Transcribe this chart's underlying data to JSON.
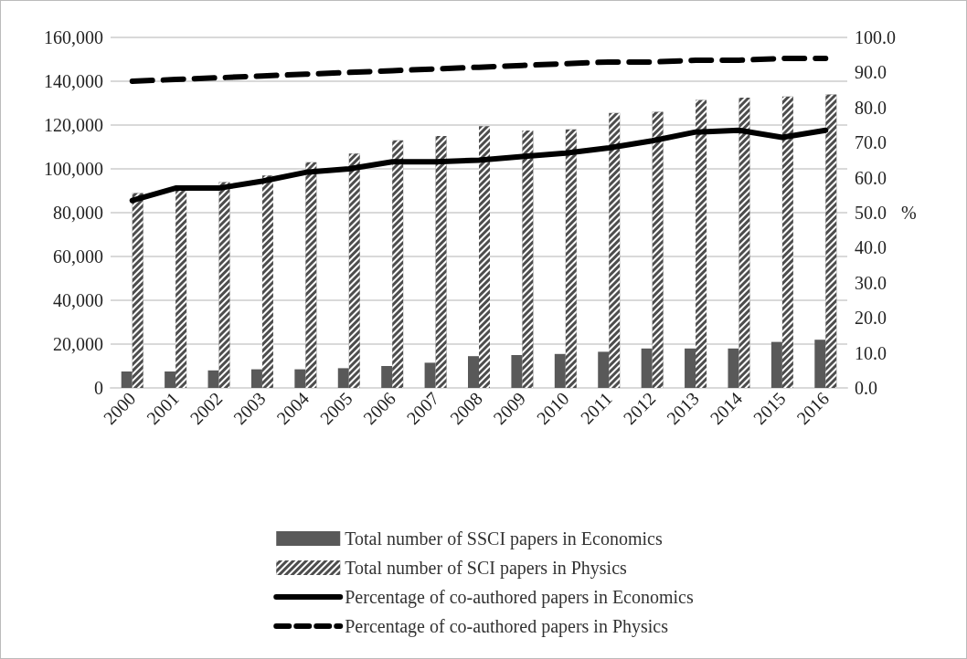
{
  "chart_data": {
    "type": "bar",
    "categories": [
      "2000",
      "2001",
      "2002",
      "2003",
      "2004",
      "2005",
      "2006",
      "2007",
      "2008",
      "2009",
      "2010",
      "2011",
      "2012",
      "2013",
      "2014",
      "2015",
      "2016"
    ],
    "series": [
      {
        "name": "Total number of SSCI papers in Economics",
        "color": "#595959",
        "values": [
          7500,
          7500,
          8000,
          8500,
          8500,
          9000,
          10000,
          11500,
          14500,
          15000,
          15500,
          16500,
          18000,
          18000,
          18000,
          21000,
          22000
        ]
      },
      {
        "name": "Total number of SCI papers in Physics",
        "color": "#4d4d4d",
        "values": [
          89000,
          91000,
          94000,
          97000,
          103000,
          107000,
          113000,
          115000,
          119500,
          117500,
          118000,
          125500,
          126000,
          131500,
          132500,
          133000,
          134000
        ]
      },
      {
        "name": "Percentage of co-authored papers in Economics",
        "type": "line",
        "axis": "y2",
        "color": "#000000",
        "line_style": "solid",
        "values": [
          53.5,
          57,
          57,
          59,
          61.5,
          62.5,
          64.5,
          64.5,
          65,
          66,
          67,
          68.5,
          70.5,
          73,
          73.5,
          71.5,
          73.5
        ]
      },
      {
        "name": "Percentage of co-authored papers in Physics",
        "type": "line",
        "axis": "y2",
        "color": "#000000",
        "line_style": "dashed",
        "values": [
          87.5,
          88,
          88.5,
          89,
          89.5,
          90,
          90.5,
          91,
          91.5,
          92,
          92.5,
          93,
          93,
          93.5,
          93.5,
          94,
          94
        ]
      }
    ],
    "y2label": "%",
    "ylim": [
      0,
      160000
    ],
    "yticks": [
      {
        "value": 0,
        "label": "0"
      },
      {
        "value": 20000,
        "label": "20,000"
      },
      {
        "value": 40000,
        "label": "40,000"
      },
      {
        "value": 60000,
        "label": "60,000"
      },
      {
        "value": 80000,
        "label": "80,000"
      },
      {
        "value": 100000,
        "label": "100,000"
      },
      {
        "value": 120000,
        "label": "120,000"
      },
      {
        "value": 140000,
        "label": "140,000"
      },
      {
        "value": 160000,
        "label": "160,000"
      }
    ],
    "y2lim": [
      0,
      100
    ],
    "y2ticks": [
      {
        "value": 0,
        "label": "0.0"
      },
      {
        "value": 10,
        "label": "10.0"
      },
      {
        "value": 20,
        "label": "20.0"
      },
      {
        "value": 30,
        "label": "30.0"
      },
      {
        "value": 40,
        "label": "40.0"
      },
      {
        "value": 50,
        "label": "50.0"
      },
      {
        "value": 60,
        "label": "60.0"
      },
      {
        "value": 70,
        "label": "70.0"
      },
      {
        "value": 80,
        "label": "80.0"
      },
      {
        "value": 90,
        "label": "90.0"
      },
      {
        "value": 100,
        "label": "100.0"
      }
    ],
    "grid": "y",
    "legend": "bottom",
    "marker": "none"
  }
}
